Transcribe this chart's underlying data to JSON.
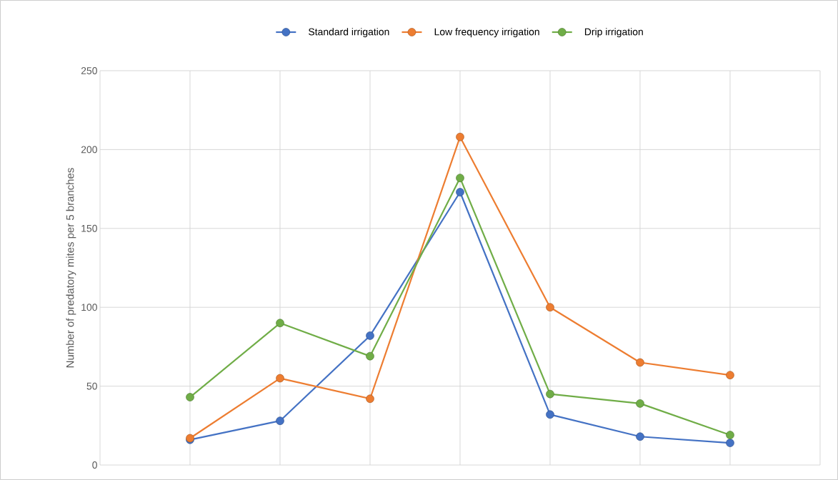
{
  "chart_data": {
    "type": "line",
    "ylabel": "Number of predatory mites per 5 branches",
    "categories": [
      null,
      null,
      null,
      null,
      null,
      null,
      null
    ],
    "series": [
      {
        "name": "Standard irrigation",
        "color": "#4472c4",
        "values": [
          16,
          28,
          82,
          173,
          32,
          18,
          14
        ]
      },
      {
        "name": "Low frequency irrigation",
        "color": "#ed7d31",
        "values": [
          17,
          55,
          42,
          208,
          100,
          65,
          57
        ]
      },
      {
        "name": "Drip irrigation",
        "color": "#70ad47",
        "values": [
          43,
          90,
          69,
          182,
          45,
          39,
          19
        ]
      }
    ],
    "ylim": [
      0,
      250
    ],
    "yticks": [
      0,
      50,
      100,
      150,
      200,
      250
    ],
    "grid": true,
    "legend": "top",
    "marker": "circle",
    "line_style": "solid"
  }
}
